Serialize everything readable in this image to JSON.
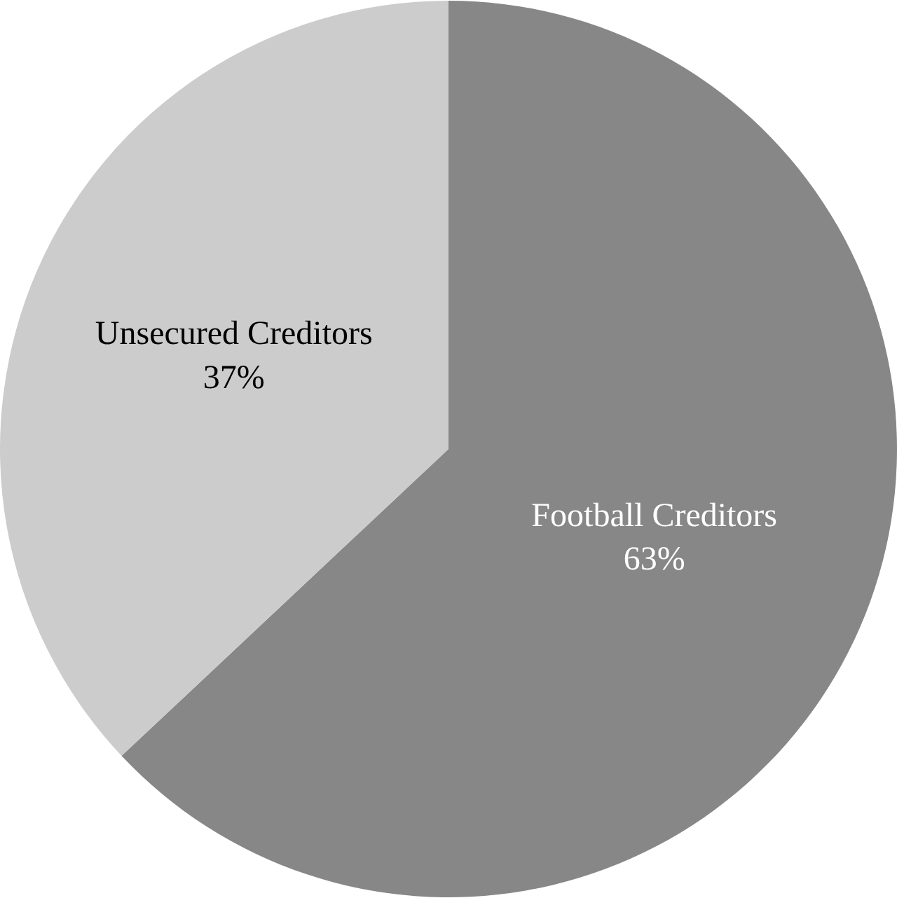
{
  "chart_data": {
    "type": "pie",
    "categories": [
      "Football Creditors",
      "Unsecured Creditors"
    ],
    "values": [
      63,
      37
    ],
    "value_labels": [
      "63%",
      "37%"
    ],
    "colors": [
      "#878787",
      "#cccccc"
    ],
    "legend": false
  }
}
